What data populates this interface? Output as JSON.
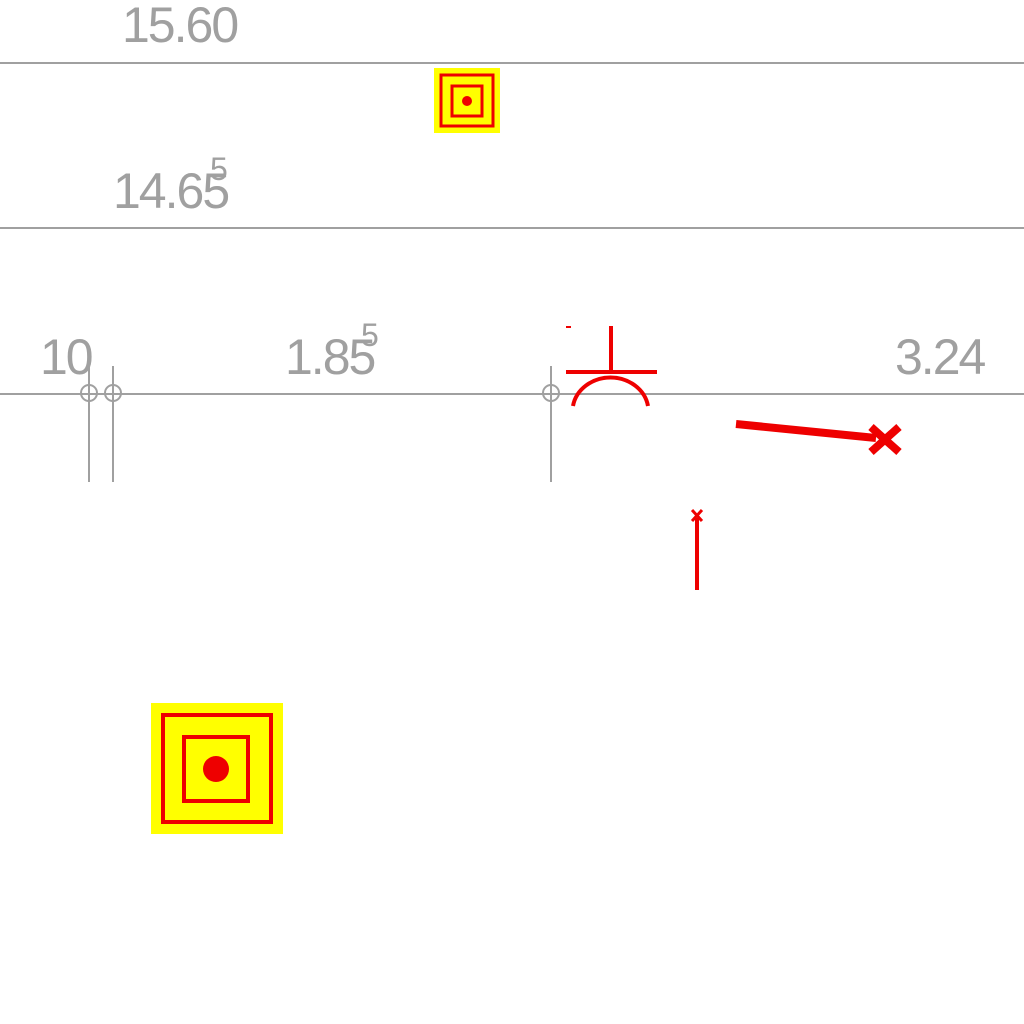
{
  "colors": {
    "line_gray": "#a0a0a0",
    "symbol_red": "#ee0000",
    "marker_yellow": "#ffff00",
    "background": "#ffffff"
  },
  "elevations": {
    "top_label": "15.60",
    "mid_label": "14.65",
    "mid_label_superscript": "5"
  },
  "dimensions": {
    "left_label": "10",
    "center_label": "1.85",
    "center_label_superscript": "5",
    "right_label": "3.24"
  },
  "symbols": [
    {
      "name": "target-marker-icon",
      "meaning": "survey target marker"
    },
    {
      "name": "stand-arch-icon",
      "meaning": "arch/stand symbol"
    },
    {
      "name": "cross-marker-icon",
      "meaning": "cross end marker"
    }
  ]
}
